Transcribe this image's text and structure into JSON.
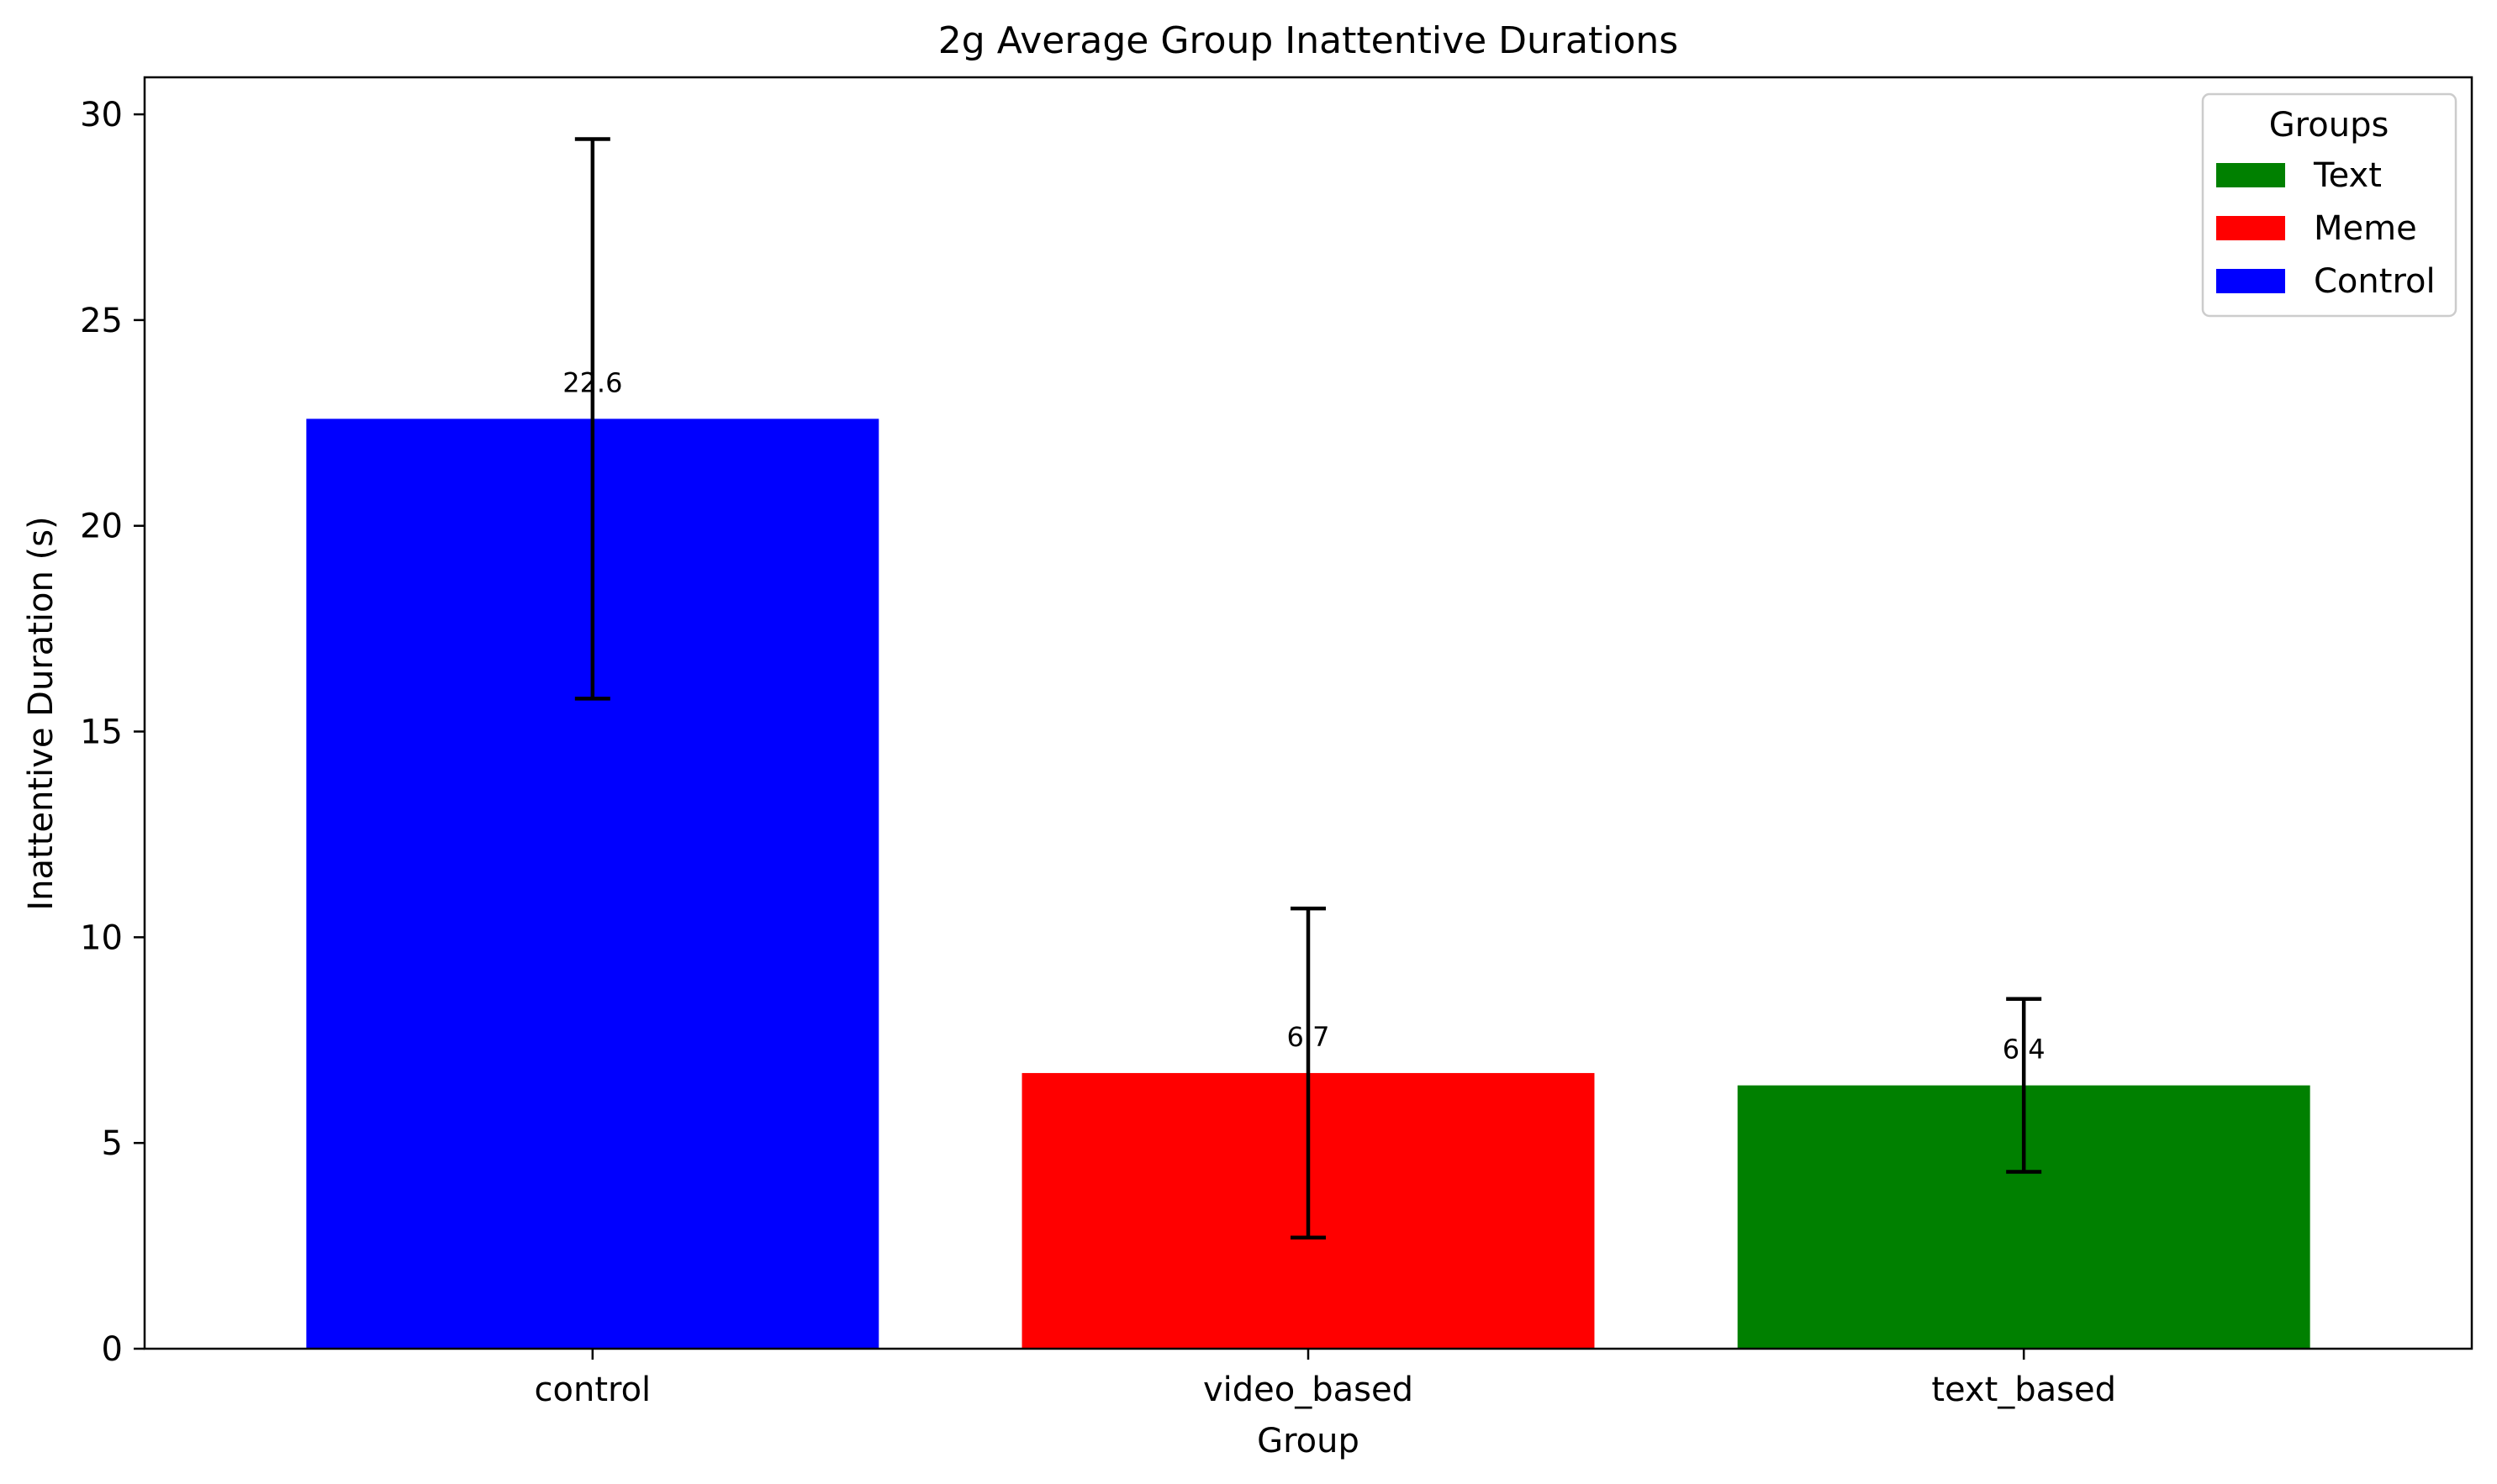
{
  "chart_data": {
    "type": "bar",
    "title": "2g Average Group Inattentive Durations",
    "xlabel": "Group",
    "ylabel": "Inattentive Duration (s)",
    "categories": [
      "control",
      "video_based",
      "text_based"
    ],
    "values": [
      22.6,
      6.7,
      6.4
    ],
    "value_labels": [
      "22.6",
      "6.7",
      "6.4"
    ],
    "errors": [
      6.8,
      4.0,
      2.1
    ],
    "colors": [
      "#0000ff",
      "#ff0000",
      "#008000"
    ],
    "ylim": [
      0,
      30.9
    ],
    "yticks": [
      0,
      5,
      10,
      15,
      20,
      25,
      30
    ],
    "grid": false,
    "legend": {
      "title": "Groups",
      "placement": "top-right",
      "entries": [
        {
          "label": "Text",
          "color": "#008000"
        },
        {
          "label": "Meme",
          "color": "#ff0000"
        },
        {
          "label": "Control",
          "color": "#0000ff"
        }
      ]
    }
  }
}
